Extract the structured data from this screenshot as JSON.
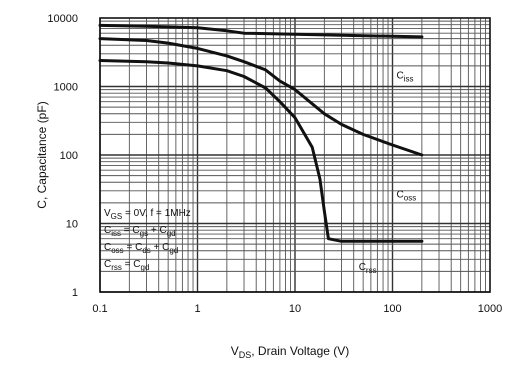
{
  "chart_data": {
    "type": "line",
    "xlabel": "V_DS, Drain Voltage (V)",
    "xlabel_parts": {
      "main": "V",
      "sub": "DS",
      "rest": ", Drain Voltage (V)"
    },
    "ylabel": "C, Capacitance (pF)",
    "x_scale": "log",
    "y_scale": "log",
    "xlim": [
      0.1,
      1000
    ],
    "ylim": [
      1,
      10000
    ],
    "x_ticks": [
      "0.1",
      "1",
      "10",
      "100",
      "1000"
    ],
    "y_ticks": [
      "1",
      "10",
      "100",
      "1000",
      "10000"
    ],
    "grid": true,
    "series": [
      {
        "name": "Ciss",
        "label_main": "C",
        "label_sub": "iss",
        "label_at": [
          110,
          1300
        ],
        "x": [
          0.1,
          0.3,
          1,
          2,
          3,
          10,
          30,
          100,
          200
        ],
        "y": [
          7800,
          7600,
          7200,
          6500,
          6000,
          5800,
          5600,
          5400,
          5300
        ]
      },
      {
        "name": "Coss",
        "label_main": "C",
        "label_sub": "oss",
        "label_at": [
          110,
          24
        ],
        "x": [
          0.1,
          0.3,
          0.5,
          1,
          2,
          3,
          5,
          7,
          10,
          20,
          30,
          50,
          100,
          200
        ],
        "y": [
          5000,
          4700,
          4300,
          3600,
          2800,
          2300,
          1750,
          1200,
          900,
          400,
          280,
          200,
          140,
          100
        ]
      },
      {
        "name": "Crss",
        "label_main": "C",
        "label_sub": "rss",
        "label_at": [
          45,
          2.1
        ],
        "x": [
          0.1,
          0.3,
          0.5,
          1,
          2,
          3,
          5,
          7,
          10,
          15,
          18,
          20,
          22,
          30,
          100,
          200
        ],
        "y": [
          2400,
          2300,
          2200,
          2000,
          1700,
          1400,
          950,
          600,
          350,
          130,
          45,
          15,
          6,
          5.5,
          5.5,
          5.5
        ]
      }
    ],
    "annotations": [
      {
        "parts": [
          {
            "t": "V"
          },
          {
            "t": "GS",
            "sub": true
          },
          {
            "t": " = 0V, f = 1MHz"
          }
        ]
      },
      {
        "parts": [
          {
            "t": "C"
          },
          {
            "t": "iss",
            "sub": true
          },
          {
            "t": " = C"
          },
          {
            "t": "gs",
            "sub": true
          },
          {
            "t": " + C"
          },
          {
            "t": "gd",
            "sub": true
          }
        ]
      },
      {
        "parts": [
          {
            "t": "C"
          },
          {
            "t": "oss",
            "sub": true
          },
          {
            "t": " = C"
          },
          {
            "t": "ds",
            "sub": true
          },
          {
            "t": " + C"
          },
          {
            "t": "gd",
            "sub": true
          }
        ]
      },
      {
        "parts": [
          {
            "t": "C"
          },
          {
            "t": "rss",
            "sub": true
          },
          {
            "t": " = C"
          },
          {
            "t": "gd",
            "sub": true
          }
        ]
      }
    ]
  }
}
